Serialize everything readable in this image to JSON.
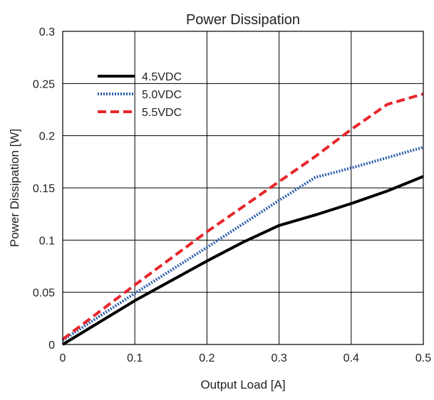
{
  "chart_data": {
    "type": "line",
    "title": "Power Dissipation",
    "xlabel": "Output Load [A]",
    "ylabel": "Power Dissipation [W]",
    "xlim": [
      0,
      0.5
    ],
    "ylim": [
      0,
      0.3
    ],
    "xticks": [
      "0",
      "0.1",
      "0.2",
      "0.3",
      "0.4",
      "0.5"
    ],
    "yticks": [
      "0",
      "0.05",
      "0.1",
      "0.15",
      "0.2",
      "0.25",
      "0.3"
    ],
    "grid": true,
    "legend_position": "top-left",
    "series": [
      {
        "name": "4.5VDC",
        "color": "#000000",
        "style": "solid",
        "x": [
          0,
          0.1,
          0.2,
          0.25,
          0.3,
          0.35,
          0.4,
          0.45,
          0.5
        ],
        "y": [
          0,
          0.042,
          0.08,
          0.098,
          0.114,
          0.124,
          0.135,
          0.147,
          0.161
        ]
      },
      {
        "name": "5.0VDC",
        "color": "#2a5caa",
        "style": "dotted",
        "x": [
          0,
          0.1,
          0.2,
          0.3,
          0.35,
          0.4,
          0.45,
          0.5
        ],
        "y": [
          0.004,
          0.049,
          0.093,
          0.138,
          0.16,
          0.169,
          0.179,
          0.189
        ]
      },
      {
        "name": "5.5VDC",
        "color": "#e8262b",
        "style": "dashed",
        "x": [
          0,
          0.1,
          0.2,
          0.3,
          0.35,
          0.4,
          0.45,
          0.5
        ],
        "y": [
          0.005,
          0.057,
          0.108,
          0.156,
          0.18,
          0.206,
          0.23,
          0.24
        ]
      }
    ]
  }
}
